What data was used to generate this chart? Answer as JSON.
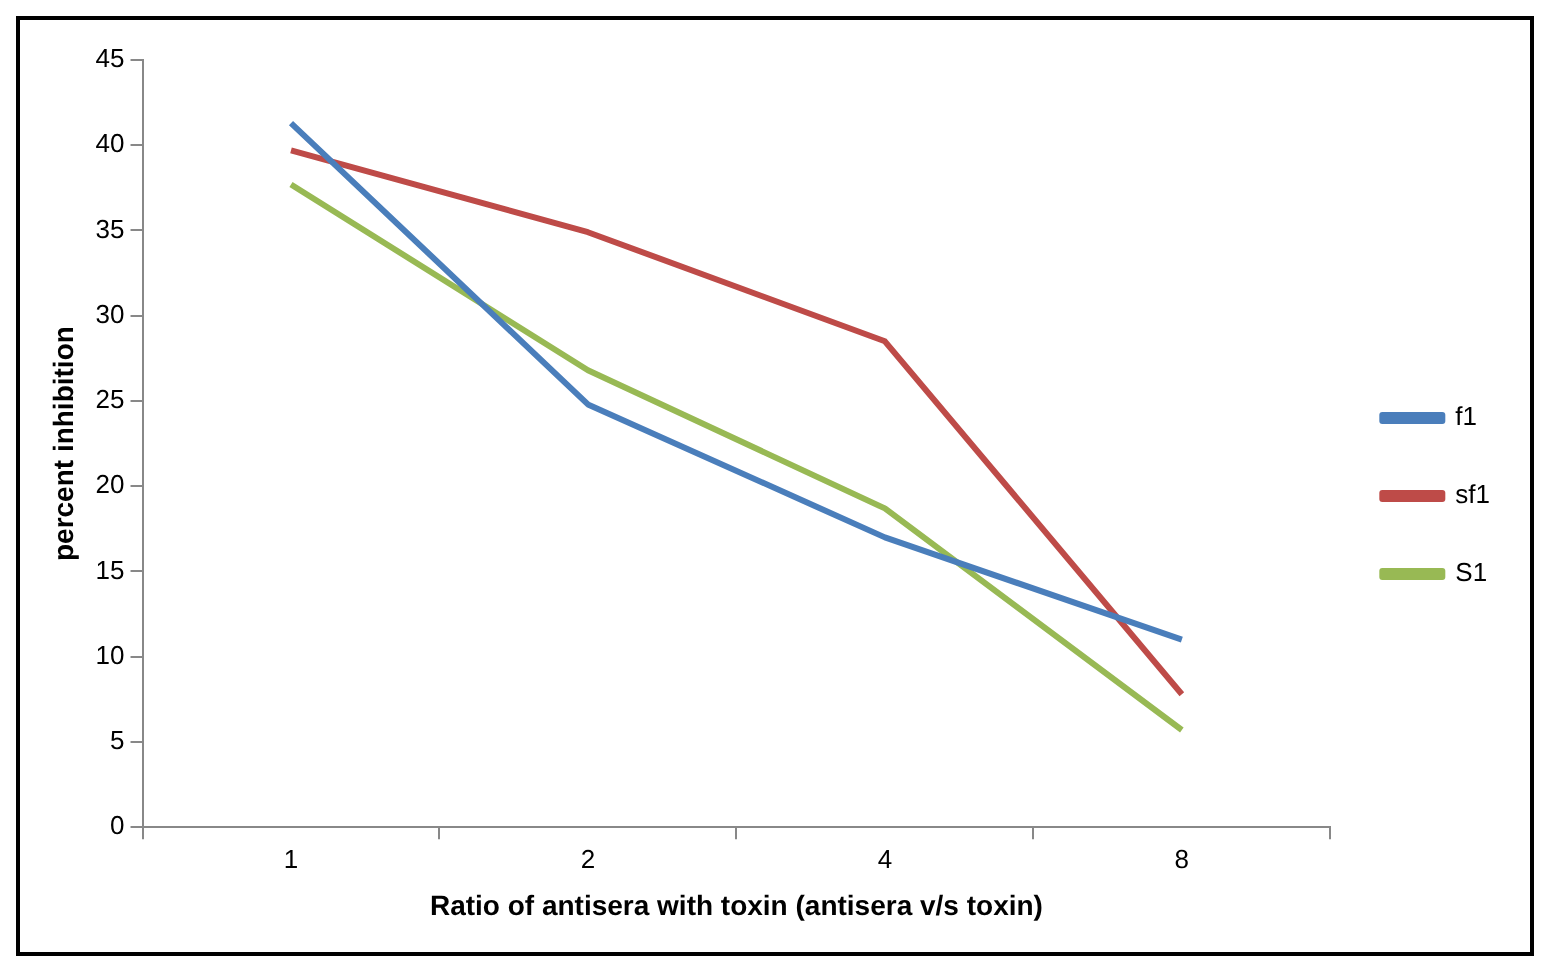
{
  "chart_data": {
    "type": "line",
    "xlabel": "Ratio of antisera with toxin (antisera v/s toxin)",
    "ylabel": "percent inhibition",
    "categories": [
      "1",
      "2",
      "4",
      "8"
    ],
    "series": [
      {
        "name": "f1",
        "color": "#4a7ebb",
        "values": [
          41.3,
          24.8,
          17,
          11
        ]
      },
      {
        "name": "sf1",
        "color": "#be4b48",
        "values": [
          39.7,
          34.9,
          28.5,
          7.8
        ]
      },
      {
        "name": "S1",
        "color": "#98b954",
        "values": [
          37.7,
          26.8,
          18.7,
          5.7
        ]
      }
    ],
    "ylim": [
      0,
      45
    ],
    "yticks": [
      0,
      5,
      10,
      15,
      20,
      25,
      30,
      35,
      40,
      45
    ],
    "grid": false,
    "legend": "right",
    "marker": "none",
    "line_style": "solid"
  }
}
